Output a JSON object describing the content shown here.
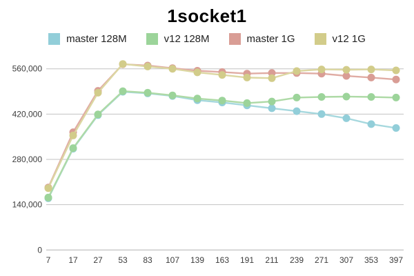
{
  "chart": {
    "title": "1socket1"
  },
  "chart_data": {
    "type": "line",
    "title": "1socket1",
    "xlabel": "",
    "ylabel": "",
    "grid": true,
    "legend_position": "top",
    "background_color": "#ffffff",
    "gridline_color": "#c2c2c2",
    "baseline_color": "#b0b0b0",
    "axis_text_color": "#3c3c3c",
    "categories": [
      "7",
      "17",
      "27",
      "53",
      "83",
      "107",
      "139",
      "163",
      "191",
      "211",
      "239",
      "271",
      "307",
      "353",
      "397"
    ],
    "y_ticks": [
      {
        "value": 0,
        "label": "0"
      },
      {
        "value": 140000,
        "label": "140,000"
      },
      {
        "value": 280000,
        "label": "280,000"
      },
      {
        "value": 420000,
        "label": "420,000"
      },
      {
        "value": 560000,
        "label": "560,000"
      }
    ],
    "ylim": [
      0,
      590000
    ],
    "series": [
      {
        "name": "master 128M",
        "marker_color": "#92ced9",
        "line_color": "#a6d8de",
        "values": [
          160000,
          313000,
          417000,
          489000,
          484000,
          476000,
          463000,
          456000,
          447000,
          438000,
          429000,
          420000,
          407000,
          389000,
          377000
        ]
      },
      {
        "name": "v12 128M",
        "marker_color": "#9cd49a",
        "line_color": "#aedaa6",
        "values": [
          162000,
          315000,
          419000,
          491000,
          486000,
          478000,
          468000,
          462000,
          454000,
          459000,
          471000,
          473000,
          474000,
          473000,
          471000
        ]
      },
      {
        "name": "master 1G",
        "marker_color": "#d99d95",
        "line_color": "#e0aca4",
        "values": [
          193000,
          364000,
          492000,
          574000,
          570000,
          562000,
          554000,
          550000,
          545000,
          547000,
          547000,
          545000,
          538000,
          533000,
          527000
        ]
      },
      {
        "name": "v12 1G",
        "marker_color": "#d2cc8a",
        "line_color": "#dcd7a2",
        "values": [
          191000,
          354000,
          486000,
          575000,
          567000,
          560000,
          549000,
          541000,
          533000,
          531000,
          553000,
          558000,
          557000,
          558000,
          555000
        ]
      }
    ]
  }
}
